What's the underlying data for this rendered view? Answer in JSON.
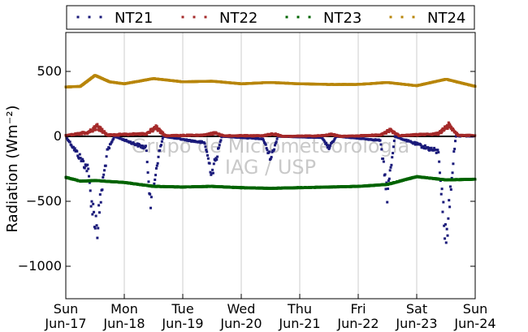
{
  "chart_data": {
    "type": "scatter",
    "title": "",
    "ylabel": "Radiation (Wm⁻²)",
    "xlabel": "",
    "x_range_days": [
      0,
      7
    ],
    "ylim": [
      -1250,
      800
    ],
    "yticks": [
      500,
      0,
      -500,
      -1000
    ],
    "ytick_labels": [
      "500",
      "0",
      "−500",
      "−1000"
    ],
    "xticks": [
      {
        "day": "Sun",
        "date": "Jun-17"
      },
      {
        "day": "Mon",
        "date": "Jun-18"
      },
      {
        "day": "Tue",
        "date": "Jun-19"
      },
      {
        "day": "Wed",
        "date": "Jun-20"
      },
      {
        "day": "Thu",
        "date": "Jun-21"
      },
      {
        "day": "Fri",
        "date": "Jun-22"
      },
      {
        "day": "Sat",
        "date": "Jun-23"
      },
      {
        "day": "Sun",
        "date": "Jun-24"
      }
    ],
    "grid": "vertical",
    "legend_position": "top",
    "watermark": [
      "Grupo de Micrometeorologia",
      "IAG / USP"
    ],
    "series": [
      {
        "name": "NT21",
        "color": "#1a1a7a",
        "x": [
          "Jun-17 00:00",
          "Jun-17 09:00",
          "Jun-17 11:00",
          "Jun-17 13:00",
          "Jun-17 15:00",
          "Jun-17 17:00",
          "Jun-17 20:00",
          "Jun-18 09:00",
          "Jun-18 10:00",
          "Jun-18 11:00",
          "Jun-18 12:00",
          "Jun-18 14:00",
          "Jun-18 16:00",
          "Jun-19 09:00",
          "Jun-19 11:00",
          "Jun-19 12:00",
          "Jun-19 14:00",
          "Jun-19 16:00",
          "Jun-20 09:00",
          "Jun-20 11:00",
          "Jun-20 12:00",
          "Jun-20 13:00",
          "Jun-20 15:00",
          "Jun-21 09:00",
          "Jun-21 12:00",
          "Jun-21 15:00",
          "Jun-22 09:00",
          "Jun-22 12:00",
          "Jun-22 15:00",
          "Jun-23 09:00",
          "Jun-23 10:00",
          "Jun-23 11:00",
          "Jun-23 12:00",
          "Jun-23 13:00",
          "Jun-23 14:00",
          "Jun-23 16:00",
          "Jun-24 00:00"
        ],
        "y": [
          0,
          -250,
          -560,
          -700,
          -380,
          -120,
          0,
          -90,
          -320,
          -520,
          -380,
          -150,
          0,
          -50,
          -220,
          -280,
          -150,
          0,
          -20,
          -120,
          -160,
          -120,
          0,
          -10,
          -90,
          0,
          -30,
          -450,
          0,
          -120,
          -380,
          -600,
          -820,
          -600,
          -380,
          0,
          0
        ]
      },
      {
        "name": "NT22",
        "color": "#a52a2a",
        "x": [
          "Jun-17 00:00",
          "Jun-17 09:00",
          "Jun-17 13:00",
          "Jun-17 17:00",
          "Jun-18 09:00",
          "Jun-18 13:00",
          "Jun-18 17:00",
          "Jun-19 09:00",
          "Jun-19 13:00",
          "Jun-19 17:00",
          "Jun-20 09:00",
          "Jun-20 13:00",
          "Jun-20 17:00",
          "Jun-21 09:00",
          "Jun-21 13:00",
          "Jun-21 17:00",
          "Jun-22 09:00",
          "Jun-22 13:00",
          "Jun-22 17:00",
          "Jun-23 09:00",
          "Jun-23 13:00",
          "Jun-23 17:00",
          "Jun-24 00:00"
        ],
        "y": [
          5,
          30,
          80,
          10,
          20,
          65,
          5,
          10,
          25,
          5,
          5,
          20,
          0,
          5,
          15,
          0,
          10,
          45,
          5,
          20,
          85,
          10,
          5
        ]
      },
      {
        "name": "NT23",
        "color": "#006400",
        "x": [
          "Jun-17 00:00",
          "Jun-17 06:00",
          "Jun-17 12:00",
          "Jun-18 00:00",
          "Jun-18 12:00",
          "Jun-19 00:00",
          "Jun-19 12:00",
          "Jun-20 00:00",
          "Jun-20 12:00",
          "Jun-21 00:00",
          "Jun-21 12:00",
          "Jun-22 00:00",
          "Jun-22 12:00",
          "Jun-23 00:00",
          "Jun-23 12:00",
          "Jun-24 00:00"
        ],
        "y": [
          -315,
          -345,
          -340,
          -355,
          -385,
          -390,
          -385,
          -395,
          -400,
          -395,
          -390,
          -385,
          -370,
          -310,
          -335,
          -330
        ]
      },
      {
        "name": "NT24",
        "color": "#b8860b",
        "x": [
          "Jun-17 00:00",
          "Jun-17 06:00",
          "Jun-17 12:00",
          "Jun-17 18:00",
          "Jun-18 00:00",
          "Jun-18 12:00",
          "Jun-19 00:00",
          "Jun-19 12:00",
          "Jun-20 00:00",
          "Jun-20 12:00",
          "Jun-21 00:00",
          "Jun-21 12:00",
          "Jun-22 00:00",
          "Jun-22 12:00",
          "Jun-23 00:00",
          "Jun-23 12:00",
          "Jun-24 00:00"
        ],
        "y": [
          380,
          385,
          470,
          420,
          405,
          445,
          420,
          425,
          405,
          415,
          405,
          400,
          400,
          415,
          390,
          440,
          385
        ]
      }
    ]
  }
}
